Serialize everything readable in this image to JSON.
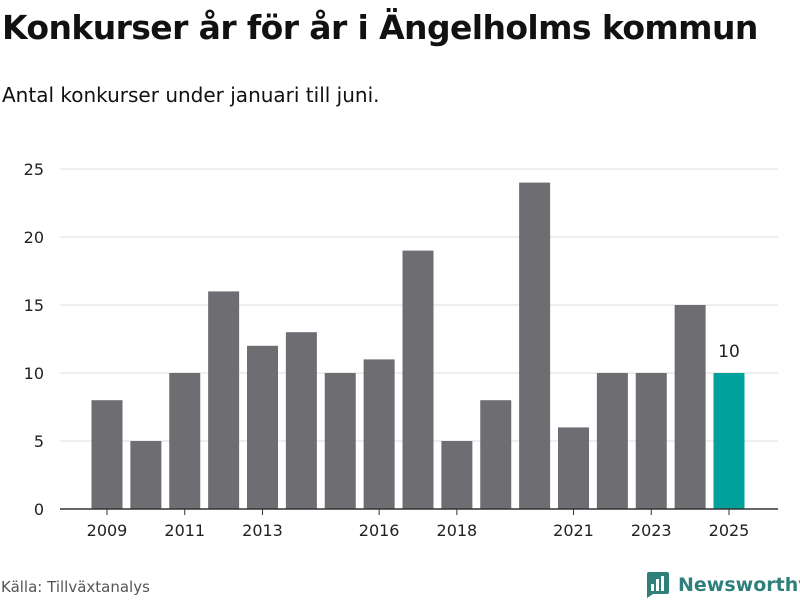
{
  "title": "Konkurser år för år i Ängelholms kommun",
  "subtitle": "Antal konkurser under januari till juni.",
  "source": "Källa: Tillväxtanalys",
  "brand": "Newsworthy",
  "colors": {
    "bar": "#6e6d72",
    "highlight": "#00a19a",
    "grid": "#dddddd",
    "axis": "#333333",
    "brand": "#2f7f7b"
  },
  "chart_data": {
    "type": "bar",
    "title": "Konkurser år för år i Ängelholms kommun",
    "subtitle": "Antal konkurser under januari till juni.",
    "xlabel": "",
    "ylabel": "",
    "categories": [
      "2009",
      "2010",
      "2011",
      "2012",
      "2013",
      "2014",
      "2015",
      "2016",
      "2017",
      "2018",
      "2019",
      "2020",
      "2021",
      "2022",
      "2023",
      "2024",
      "2025"
    ],
    "values": [
      8,
      5,
      10,
      16,
      12,
      13,
      10,
      11,
      19,
      5,
      8,
      24,
      6,
      10,
      10,
      15,
      10
    ],
    "x_tick_labels": [
      "2009",
      "2011",
      "2013",
      "2016",
      "2018",
      "2021",
      "2023",
      "2025"
    ],
    "y_ticks": [
      0,
      5,
      10,
      15,
      20,
      25
    ],
    "ylim": [
      0,
      25
    ],
    "grid": true,
    "highlight_category": "2025",
    "data_labels": [
      {
        "category": "2025",
        "text": "10"
      }
    ]
  }
}
